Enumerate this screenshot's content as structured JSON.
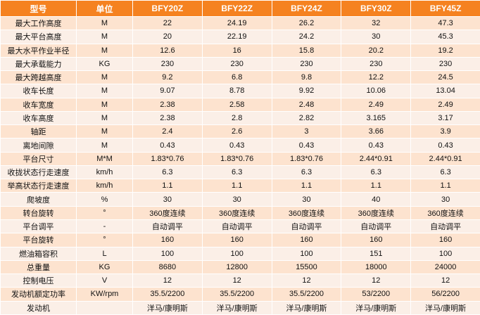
{
  "table": {
    "headers": [
      "型号",
      "单位",
      "BFY20Z",
      "BFY22Z",
      "BFY24Z",
      "BFY30Z",
      "BFY45Z"
    ],
    "rows": [
      {
        "label": "最大工作高度",
        "unit": "M",
        "values": [
          "22",
          "24.19",
          "26.2",
          "32",
          "47.3"
        ]
      },
      {
        "label": "最大平台高度",
        "unit": "M",
        "values": [
          "20",
          "22.19",
          "24.2",
          "30",
          "45.3"
        ]
      },
      {
        "label": "最大水平作业半径",
        "unit": "M",
        "values": [
          "12.6",
          "16",
          "15.8",
          "20.2",
          "19.2"
        ]
      },
      {
        "label": "最大承载能力",
        "unit": "KG",
        "values": [
          "230",
          "230",
          "230",
          "230",
          "230"
        ]
      },
      {
        "label": "最大跨越高度",
        "unit": "M",
        "values": [
          "9.2",
          "6.8",
          "9.8",
          "12.2",
          "24.5"
        ]
      },
      {
        "label": "收车长度",
        "unit": "M",
        "values": [
          "9.07",
          "8.78",
          "9.92",
          "10.06",
          "13.04"
        ]
      },
      {
        "label": "收车宽度",
        "unit": "M",
        "values": [
          "2.38",
          "2.58",
          "2.48",
          "2.49",
          "2.49"
        ]
      },
      {
        "label": "收车高度",
        "unit": "M",
        "values": [
          "2.38",
          "2.8",
          "2.82",
          "3.165",
          "3.17"
        ]
      },
      {
        "label": "轴距",
        "unit": "M",
        "values": [
          "2.4",
          "2.6",
          "3",
          "3.66",
          "3.9"
        ]
      },
      {
        "label": "离地间隙",
        "unit": "M",
        "values": [
          "0.43",
          "0.43",
          "0.43",
          "0.43",
          "0.43"
        ]
      },
      {
        "label": "平台尺寸",
        "unit": "M*M",
        "values": [
          "1.83*0.76",
          "1.83*0.76",
          "1.83*0.76",
          "2.44*0.91",
          "2.44*0.91"
        ]
      },
      {
        "label": "收拢状态行走速度",
        "unit": "km/h",
        "values": [
          "6.3",
          "6.3",
          "6.3",
          "6.3",
          "6.3"
        ]
      },
      {
        "label": "举高状态行走速度",
        "unit": "km/h",
        "values": [
          "1.1",
          "1.1",
          "1.1",
          "1.1",
          "1.1"
        ]
      },
      {
        "label": "爬坡度",
        "unit": "%",
        "values": [
          "30",
          "30",
          "30",
          "40",
          "30"
        ]
      },
      {
        "label": "转台旋转",
        "unit": "°",
        "values": [
          "360度连续",
          "360度连续",
          "360度连续",
          "360度连续",
          "360度连续"
        ]
      },
      {
        "label": "平台调平",
        "unit": "-",
        "values": [
          "自动调平",
          "自动调平",
          "自动调平",
          "自动调平",
          "自动调平"
        ]
      },
      {
        "label": "平台旋转",
        "unit": "°",
        "values": [
          "160",
          "160",
          "160",
          "160",
          "160"
        ]
      },
      {
        "label": "燃油箱容积",
        "unit": "L",
        "values": [
          "100",
          "100",
          "100",
          "151",
          "100"
        ]
      },
      {
        "label": "总重量",
        "unit": "KG",
        "values": [
          "8680",
          "12800",
          "15500",
          "18000",
          "24000"
        ]
      },
      {
        "label": "控制电压",
        "unit": "V",
        "values": [
          "12",
          "12",
          "12",
          "12",
          "12"
        ]
      },
      {
        "label": "发动机额定功率",
        "unit": "KW/rpm",
        "values": [
          "35.5/2200",
          "35.5/2200",
          "35.5/2200",
          "53/2200",
          "56/2200"
        ]
      },
      {
        "label": "发动机",
        "unit": "",
        "values": [
          "洋马/康明斯",
          "洋马/康明斯",
          "洋马/康明斯",
          "洋马/康明斯",
          "洋马/康明斯"
        ]
      }
    ]
  }
}
